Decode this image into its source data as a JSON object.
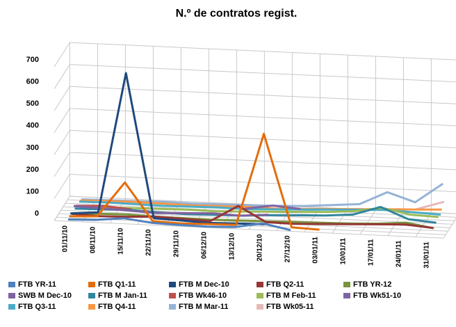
{
  "chart_data": {
    "type": "line3d",
    "title": "N.º de contratos regist.",
    "categories": [
      "01/11/10",
      "08/11/10",
      "15/11/10",
      "22/11/10",
      "29/11/10",
      "06/12/10",
      "13/12/10",
      "20/12/10",
      "27/12/10",
      "03/01/11",
      "10/01/11",
      "17/01/11",
      "24/01/11",
      "31/01/11"
    ],
    "ylim": [
      0,
      700
    ],
    "yticks": [
      0,
      100,
      200,
      300,
      400,
      500,
      600,
      700
    ],
    "grid": true,
    "series": [
      {
        "name": "FTB YR-11",
        "color": "#4f81bd",
        "values": [
          8,
          12,
          25,
          10,
          6,
          4,
          8,
          30,
          5,
          null,
          null,
          null,
          null,
          null
        ]
      },
      {
        "name": "FTB Q1-11",
        "color": "#e46c0a",
        "values": [
          15,
          20,
          180,
          10,
          5,
          8,
          10,
          430,
          10,
          5,
          null,
          null,
          null,
          null
        ]
      },
      {
        "name": "FTB M Dec-10",
        "color": "#1f497d",
        "values": [
          20,
          30,
          670,
          15,
          10,
          5,
          8,
          10,
          null,
          null,
          null,
          null,
          null,
          null
        ]
      },
      {
        "name": "FTB Q2-11",
        "color": "#953735",
        "values": [
          10,
          5,
          8,
          15,
          10,
          6,
          80,
          12,
          10,
          15,
          20,
          25,
          30,
          20
        ]
      },
      {
        "name": "FTB YR-12",
        "color": "#77933c",
        "values": [
          5,
          8,
          10,
          6,
          5,
          4,
          6,
          8,
          10,
          12,
          15,
          20,
          30,
          10
        ]
      },
      {
        "name": "SWB M Dec-10",
        "color": "#7f62a0",
        "values": [
          30,
          25,
          20,
          15,
          20,
          25,
          20,
          30,
          null,
          null,
          null,
          null,
          null,
          null
        ]
      },
      {
        "name": "FTB M Jan-11",
        "color": "#31859c",
        "values": [
          10,
          12,
          15,
          10,
          8,
          10,
          12,
          20,
          25,
          30,
          40,
          80,
          30,
          20
        ]
      },
      {
        "name": "FTB Wk46-10",
        "color": "#c0504d",
        "values": [
          15,
          20,
          10,
          null,
          null,
          null,
          null,
          null,
          null,
          null,
          null,
          null,
          null,
          null
        ]
      },
      {
        "name": "FTB M Feb-11",
        "color": "#9bbb59",
        "values": [
          5,
          6,
          8,
          10,
          12,
          10,
          15,
          20,
          25,
          30,
          40,
          60,
          35,
          30
        ]
      },
      {
        "name": "FTB Wk51-10",
        "color": "#8064a2",
        "values": [
          null,
          null,
          null,
          null,
          null,
          null,
          20,
          40,
          30,
          null,
          null,
          null,
          null,
          null
        ]
      },
      {
        "name": "FTB Q3-11",
        "color": "#4bacc6",
        "values": [
          10,
          12,
          10,
          8,
          10,
          12,
          10,
          15,
          20,
          25,
          30,
          35,
          30,
          25
        ]
      },
      {
        "name": "FTB Q4-11",
        "color": "#f79646",
        "values": [
          8,
          10,
          12,
          10,
          8,
          10,
          12,
          10,
          15,
          20,
          25,
          30,
          35,
          40
        ]
      },
      {
        "name": "FTB M Mar-11",
        "color": "#95b3d7",
        "values": [
          5,
          6,
          8,
          10,
          8,
          10,
          12,
          15,
          20,
          30,
          40,
          100,
          60,
          150
        ]
      },
      {
        "name": "FTB Wk05-11",
        "color": "#e6b9b8",
        "values": [
          null,
          null,
          null,
          null,
          null,
          null,
          null,
          null,
          null,
          null,
          null,
          null,
          20,
          60
        ]
      }
    ]
  }
}
